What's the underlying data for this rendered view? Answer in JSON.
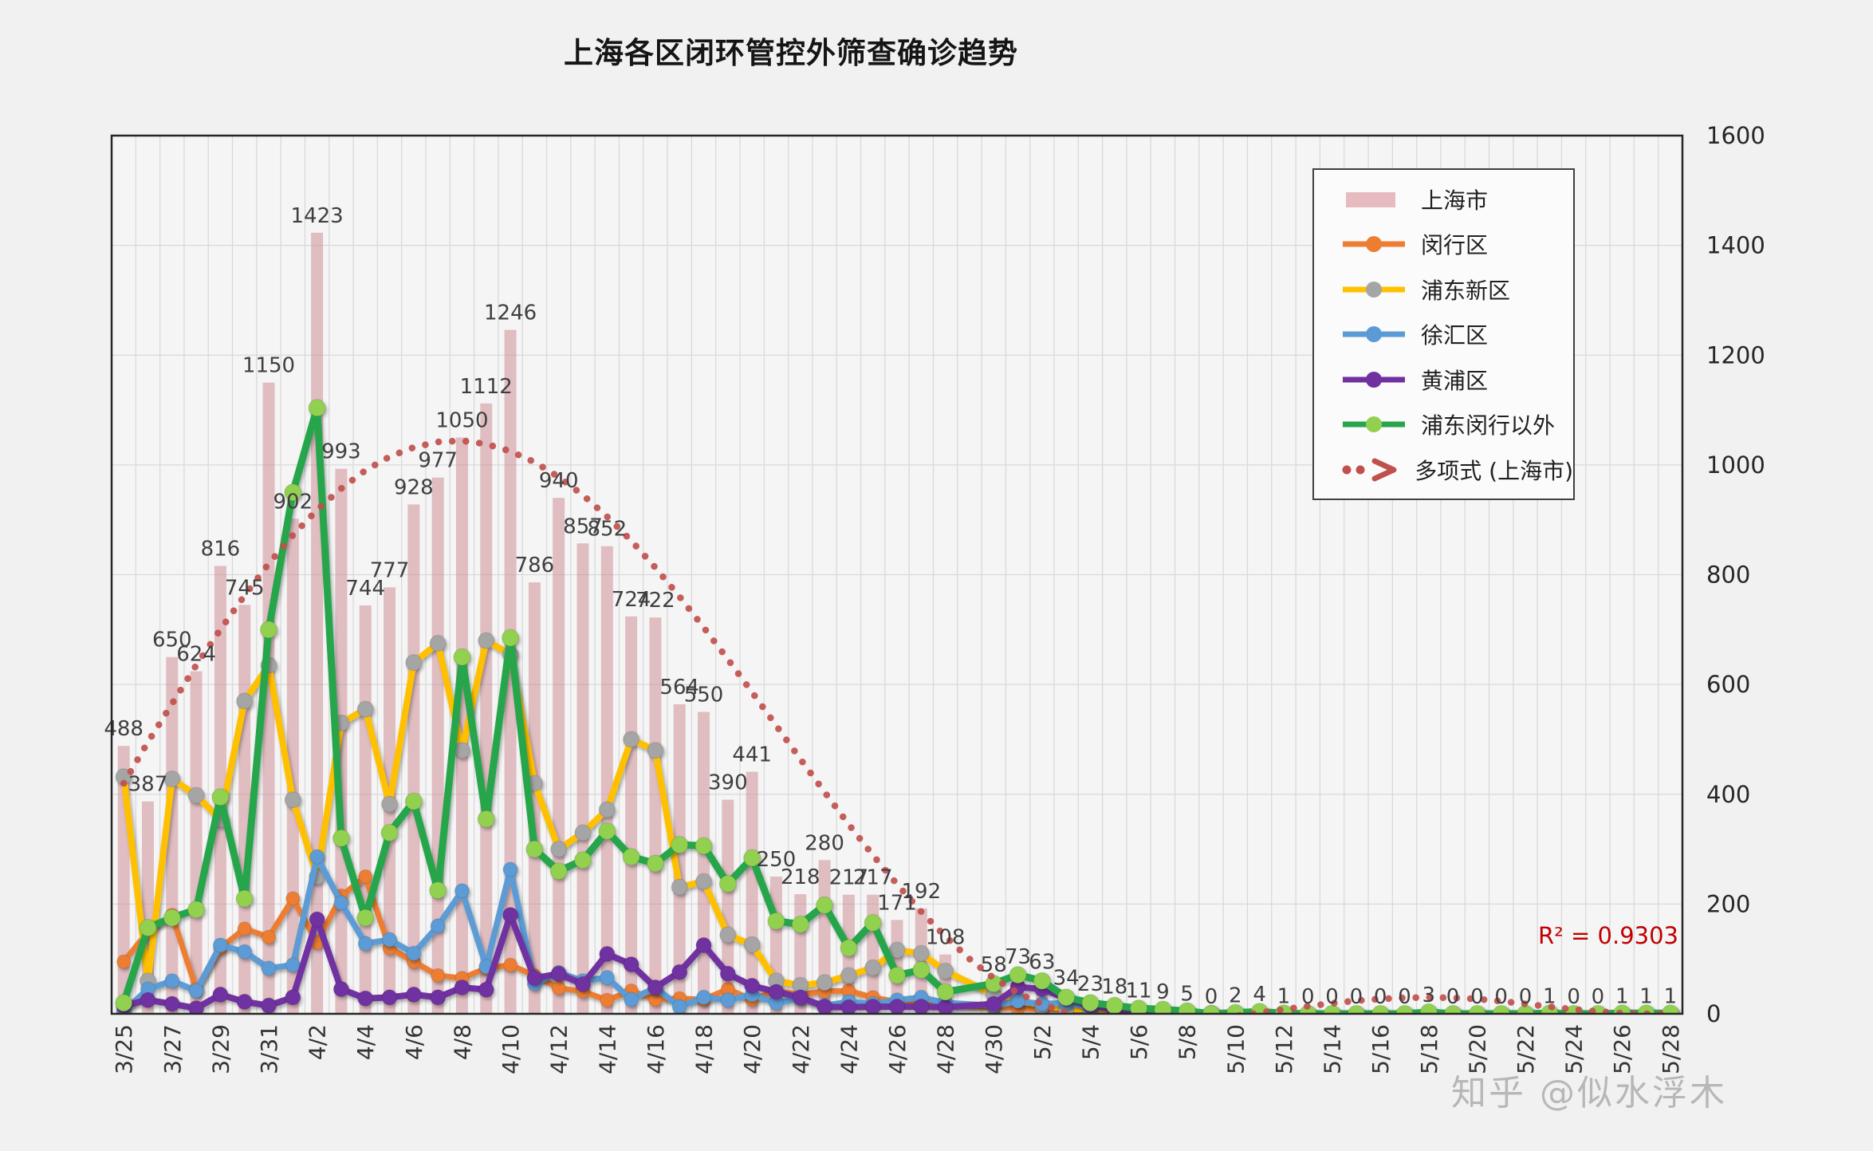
{
  "title": "上海各区闭环管控外筛查确诊趋势",
  "watermark": "知乎 @似水浮木",
  "r_squared_label": "R² = 0.9303",
  "colors": {
    "background": "#f1f1f2",
    "bar": "#C9868D",
    "bar_legend": "#E5BBC0",
    "orange": "#ED7D31",
    "yellow": "#FFC000",
    "gray_marker": "#A5A5A5",
    "blue": "#5B9BD5",
    "purple": "#7030A0",
    "green": "#26A54C",
    "green_marker": "#92D050",
    "trend": "#C0504D",
    "r2": "#C00000",
    "label": "#3F3F3F",
    "grid": "#D9D9D9",
    "border": "#262626"
  },
  "legend": {
    "position": "top-right",
    "items": [
      {
        "label": "上海市",
        "swatch": "bar",
        "color_key": "bar_legend"
      },
      {
        "label": "闵行区",
        "swatch": "line",
        "color_key": "orange",
        "marker_key": "orange"
      },
      {
        "label": "浦东新区",
        "swatch": "line",
        "color_key": "yellow",
        "marker_key": "gray_marker"
      },
      {
        "label": "徐汇区",
        "swatch": "line",
        "color_key": "blue",
        "marker_key": "blue"
      },
      {
        "label": "黄浦区",
        "swatch": "line",
        "color_key": "purple",
        "marker_key": "purple"
      },
      {
        "label": "浦东闵行以外",
        "swatch": "line",
        "color_key": "green",
        "marker_key": "green_marker"
      },
      {
        "label": "多项式 (上海市)",
        "swatch": "trend",
        "color_key": "trend"
      }
    ]
  },
  "chart_data": {
    "type": "bar+line combo with polynomial trendline",
    "title": "上海各区闭环管控外筛查确诊趋势",
    "ylim": [
      0,
      1600
    ],
    "y_ticks": [
      0,
      200,
      400,
      600,
      800,
      1000,
      1200,
      1400,
      1600
    ],
    "y_axis_side": "right",
    "grid": true,
    "x_tick_every": 2,
    "categories": [
      "3/25",
      "3/26",
      "3/27",
      "3/28",
      "3/29",
      "3/30",
      "3/31",
      "4/1",
      "4/2",
      "4/3",
      "4/4",
      "4/5",
      "4/6",
      "4/7",
      "4/8",
      "4/9",
      "4/10",
      "4/11",
      "4/12",
      "4/13",
      "4/14",
      "4/15",
      "4/16",
      "4/17",
      "4/18",
      "4/19",
      "4/20",
      "4/21",
      "4/22",
      "4/23",
      "4/24",
      "4/25",
      "4/26",
      "4/27",
      "4/28",
      "4/29",
      "4/30",
      "5/1",
      "5/2",
      "5/3",
      "5/4",
      "5/5",
      "5/6",
      "5/7",
      "5/8",
      "5/9",
      "5/10",
      "5/11",
      "5/12",
      "5/13",
      "5/14",
      "5/15",
      "5/16",
      "5/17",
      "5/18",
      "5/19",
      "5/20",
      "5/21",
      "5/22",
      "5/23",
      "5/24",
      "5/25",
      "5/26",
      "5/27",
      "5/28"
    ],
    "bar_series": {
      "name": "上海市",
      "color_key": "bar",
      "data_labels": true,
      "values": [
        488,
        387,
        650,
        624,
        816,
        745,
        1150,
        902,
        1423,
        993,
        744,
        777,
        928,
        977,
        1050,
        1112,
        1246,
        786,
        940,
        857,
        852,
        724,
        722,
        564,
        550,
        390,
        441,
        250,
        218,
        280,
        217,
        217,
        171,
        192,
        108,
        null,
        58,
        73,
        63,
        34,
        23,
        18,
        11,
        9,
        5,
        0,
        2,
        4,
        1,
        0,
        0,
        0,
        0,
        0,
        3,
        0,
        0,
        0,
        0,
        1,
        0,
        0,
        1,
        1,
        1
      ]
    },
    "line_series": [
      {
        "name": "闵行区",
        "color_key": "orange",
        "marker_key": "orange",
        "values": [
          95,
          150,
          180,
          45,
          120,
          155,
          140,
          210,
          130,
          215,
          250,
          120,
          95,
          70,
          65,
          83,
          89,
          70,
          47,
          41,
          25,
          42,
          26,
          28,
          26,
          45,
          26,
          42,
          35,
          41,
          42,
          30,
          22,
          18,
          15,
          null,
          12,
          10,
          8,
          8,
          6,
          5,
          3,
          2,
          2,
          1,
          0,
          1,
          0,
          0,
          0,
          0,
          0,
          0,
          1,
          0,
          0,
          0,
          0,
          0,
          0,
          0,
          0,
          0,
          0
        ]
      },
      {
        "name": "浦东新区",
        "color_key": "yellow",
        "marker_key": "gray_marker",
        "values": [
          432,
          60,
          428,
          398,
          354,
          570,
          635,
          390,
          250,
          530,
          555,
          382,
          640,
          675,
          480,
          680,
          655,
          420,
          300,
          330,
          372,
          500,
          480,
          231,
          241,
          144,
          126,
          60,
          52,
          57,
          70,
          84,
          116,
          110,
          78,
          null,
          35,
          25,
          15,
          10,
          8,
          5,
          4,
          3,
          2,
          1,
          1,
          0,
          0,
          0,
          0,
          0,
          0,
          0,
          1,
          0,
          0,
          0,
          0,
          0,
          0,
          0,
          0,
          0,
          0
        ]
      },
      {
        "name": "徐汇区",
        "color_key": "blue",
        "marker_key": "blue",
        "values": [
          5,
          45,
          60,
          42,
          125,
          113,
          83,
          89,
          286,
          202,
          128,
          135,
          110,
          160,
          224,
          86,
          263,
          55,
          75,
          60,
          66,
          26,
          48,
          13,
          30,
          25,
          35,
          20,
          28,
          15,
          22,
          18,
          25,
          30,
          20,
          null,
          15,
          23,
          18,
          20,
          12,
          10,
          8,
          5,
          3,
          2,
          1,
          0,
          0,
          0,
          0,
          0,
          0,
          0,
          0,
          0,
          0,
          0,
          0,
          0,
          0,
          0,
          0,
          0,
          0
        ]
      },
      {
        "name": "黄浦区",
        "color_key": "purple",
        "marker_key": "purple",
        "values": [
          15,
          25,
          18,
          10,
          35,
          22,
          15,
          30,
          172,
          45,
          28,
          30,
          35,
          30,
          48,
          44,
          180,
          65,
          73,
          54,
          109,
          90,
          48,
          76,
          125,
          73,
          51,
          40,
          30,
          13,
          12,
          13,
          13,
          13,
          12,
          null,
          18,
          49,
          45,
          28,
          15,
          8,
          4,
          2,
          1,
          0,
          0,
          0,
          0,
          0,
          0,
          0,
          0,
          0,
          0,
          0,
          0,
          0,
          0,
          0,
          0,
          0,
          0,
          0,
          0
        ]
      },
      {
        "name": "浦东闵行以外",
        "color_key": "green",
        "marker_key": "green_marker",
        "values": [
          20,
          157,
          175,
          190,
          395,
          210,
          700,
          950,
          1104,
          320,
          175,
          330,
          387,
          225,
          650,
          355,
          685,
          300,
          260,
          280,
          333,
          286,
          274,
          308,
          306,
          237,
          284,
          169,
          163,
          198,
          120,
          166,
          70,
          80,
          40,
          null,
          55,
          71,
          60,
          30,
          20,
          15,
          10,
          8,
          5,
          0,
          2,
          4,
          1,
          0,
          0,
          0,
          0,
          0,
          3,
          0,
          0,
          0,
          0,
          1,
          0,
          0,
          1,
          1,
          1
        ]
      }
    ],
    "trendline": {
      "name": "多项式 (上海市)",
      "for_series": "上海市",
      "r_squared": 0.9303,
      "color_key": "trend",
      "values": [
        420,
        495,
        565,
        635,
        700,
        762,
        820,
        872,
        918,
        957,
        990,
        1015,
        1032,
        1042,
        1044,
        1038,
        1025,
        1005,
        978,
        945,
        906,
        862,
        813,
        760,
        704,
        646,
        586,
        525,
        464,
        404,
        345,
        289,
        236,
        186,
        141,
        100,
        65,
        38,
        18,
        2,
        -10,
        -17,
        -20,
        -19,
        -15,
        -10,
        -4,
        2,
        8,
        14,
        19,
        24,
        27,
        29,
        30,
        29,
        27,
        23,
        18,
        13,
        8,
        4,
        1,
        0,
        0
      ]
    }
  }
}
